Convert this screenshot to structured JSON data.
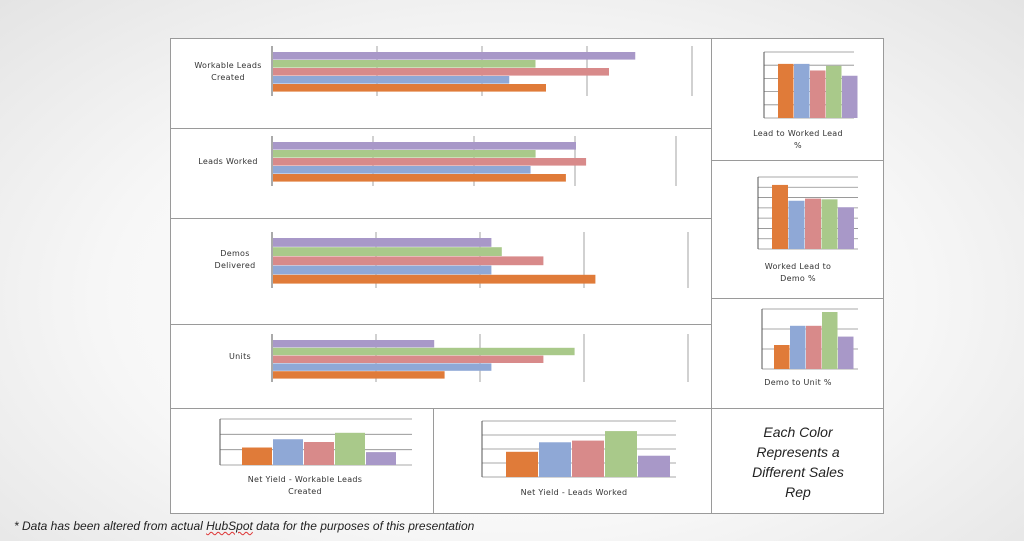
{
  "colors": [
    "#e07b39",
    "#8fa8d6",
    "#d88a8a",
    "#a9c98a",
    "#a898c8"
  ],
  "chart_data": [
    {
      "type": "bar",
      "orientation": "horizontal",
      "id": "workable-leads-created",
      "ylabel": "Workable Leads Created",
      "title": "",
      "series_values": [
        52,
        45,
        64,
        50,
        69
      ],
      "xlim": [
        0,
        80
      ]
    },
    {
      "type": "bar",
      "orientation": "horizontal",
      "id": "leads-worked",
      "ylabel": "Leads Worked",
      "title": "",
      "series_values": [
        58,
        51,
        62,
        52,
        60
      ],
      "xlim": [
        0,
        80
      ]
    },
    {
      "type": "bar",
      "orientation": "horizontal",
      "id": "demos-delivered",
      "ylabel": "Demos Delivered",
      "title": "",
      "series_values": [
        62,
        42,
        52,
        44,
        42
      ],
      "xlim": [
        0,
        80
      ]
    },
    {
      "type": "bar",
      "orientation": "horizontal",
      "id": "units",
      "ylabel": "Units",
      "title": "",
      "series_values": [
        33,
        42,
        52,
        58,
        31
      ],
      "xlim": [
        0,
        80
      ]
    },
    {
      "type": "bar",
      "orientation": "vertical",
      "id": "lead-to-worked-lead-pct",
      "title": "Lead to Worked Lead %",
      "series_values": [
        82,
        82,
        72,
        79,
        64
      ],
      "ylim": [
        0,
        100
      ]
    },
    {
      "type": "bar",
      "orientation": "vertical",
      "id": "worked-lead-to-demo-pct",
      "title": "Worked Lead to Demo %",
      "series_values": [
        89,
        67,
        70,
        69,
        58
      ],
      "ylim": [
        0,
        100
      ]
    },
    {
      "type": "bar",
      "orientation": "vertical",
      "id": "demo-to-unit-pct",
      "title": "Demo to Unit %",
      "series_values": [
        40,
        72,
        72,
        95,
        54
      ],
      "ylim": [
        0,
        100
      ]
    },
    {
      "type": "bar",
      "orientation": "vertical",
      "id": "net-yield-workable-leads-created",
      "title": "Net Yield - Workable Leads Created",
      "series_values": [
        38,
        56,
        50,
        70,
        28
      ],
      "ylim": [
        0,
        100
      ]
    },
    {
      "type": "bar",
      "orientation": "vertical",
      "id": "net-yield-leads-worked",
      "title": "Net Yield - Leads Worked",
      "series_values": [
        45,
        62,
        65,
        82,
        38
      ],
      "ylim": [
        0,
        100
      ]
    }
  ],
  "legend_note": "Each Color Represents a Different Sales Rep",
  "footnote": {
    "before": "* Data has been altered from actual ",
    "brand": "HubSpot",
    "after": " data for the purposes of this presentation"
  }
}
